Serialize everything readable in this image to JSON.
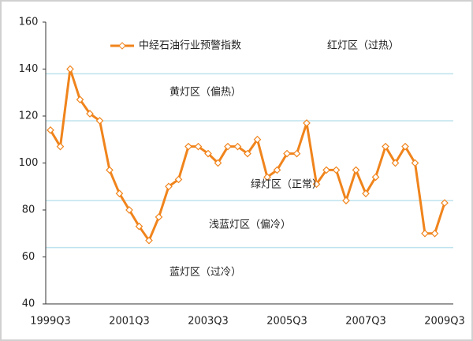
{
  "chart_data": {
    "type": "line",
    "categories": [
      "1999Q3",
      null,
      null,
      null,
      null,
      null,
      null,
      null,
      "2001Q3",
      null,
      null,
      null,
      null,
      null,
      null,
      null,
      "2003Q3",
      null,
      null,
      null,
      null,
      null,
      null,
      null,
      "2005Q3",
      null,
      null,
      null,
      null,
      null,
      null,
      null,
      "2007Q3",
      null,
      null,
      null,
      null,
      null,
      null,
      null,
      "2009Q3"
    ],
    "series": [
      {
        "name": "中经石油行业预警指数",
        "color": "#f0841c",
        "values": [
          114,
          107,
          140,
          127,
          121,
          118,
          97,
          87,
          80,
          73,
          67,
          77,
          90,
          93,
          107,
          107,
          104,
          100,
          107,
          107,
          104,
          110,
          94,
          97,
          104,
          104,
          117,
          91,
          97,
          97,
          84,
          97,
          87,
          94,
          107,
          100,
          107,
          100,
          70,
          70,
          83
        ]
      }
    ],
    "ylim": [
      40,
      160
    ],
    "yticks": [
      40,
      60,
      80,
      100,
      120,
      140,
      160
    ],
    "zone_lines": [
      138,
      118,
      84,
      64
    ],
    "zone_line_color": "#bfe3ee",
    "legend": "upper left",
    "annotations": [
      {
        "text": "红灯区（过热）",
        "color": "#e0342a"
      },
      {
        "text": "黄灯区（偏热）",
        "color": "#f0a020"
      },
      {
        "text": "绿灯区（正常）",
        "color": "#3cb43c"
      },
      {
        "text": "浅蓝灯区（偏冷）",
        "color": "#5ab4dc"
      },
      {
        "text": "蓝灯区（过冷）",
        "color": "#2840a8"
      }
    ]
  }
}
